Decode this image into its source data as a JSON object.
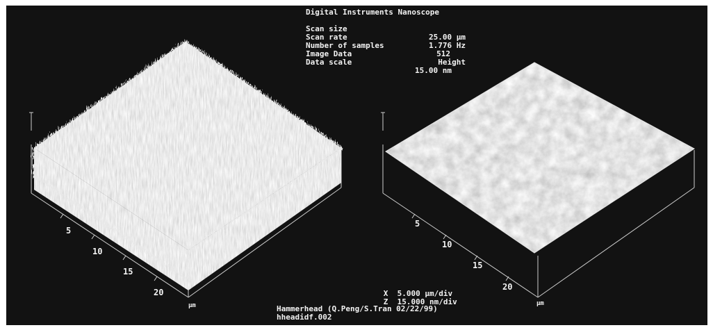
{
  "header": {
    "title": "Digital Instruments Nanoscope",
    "rows": [
      {
        "label": "Scan size",
        "value": "25.00 µm"
      },
      {
        "label": "Scan rate",
        "value": "1.776 Hz"
      },
      {
        "label": "Number of samples",
        "value": "512"
      },
      {
        "label": "Image Data",
        "value": "Height"
      },
      {
        "label": "Data scale",
        "value": "15.00 nm"
      }
    ]
  },
  "left_plot": {
    "ticks": [
      "5",
      "10",
      "15",
      "20"
    ],
    "unit": "µm"
  },
  "right_plot": {
    "ticks": [
      "5",
      "10",
      "15",
      "20"
    ],
    "unit": "µm"
  },
  "scale": {
    "x_axis": "X",
    "x_value": "5.000 µm/div",
    "z_axis": "Z",
    "z_value": "15.000 nm/div"
  },
  "footer": {
    "caption": "Hammerhead (Q.Peng/S.Tran 02/22/99)",
    "file_name": "hheadidf.002"
  },
  "colors": {
    "background": "#121212",
    "text": "#f2f2f2",
    "surface": "#d8d8d8"
  }
}
